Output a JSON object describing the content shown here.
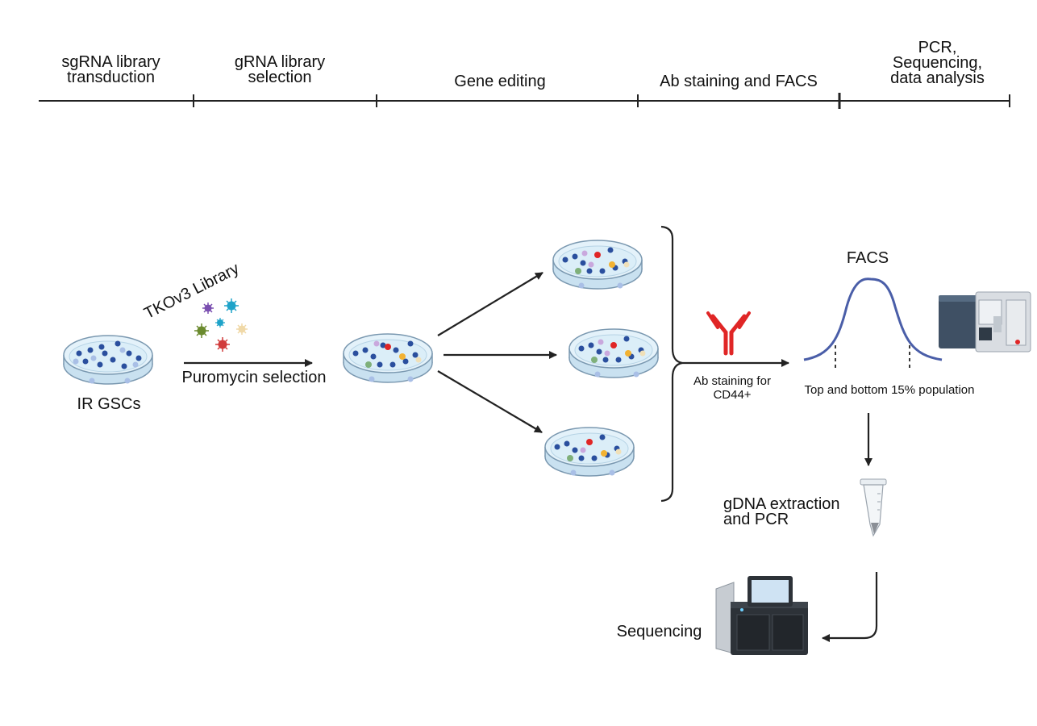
{
  "timeline": {
    "phases": [
      {
        "lines": [
          "sgRNA library",
          "transduction"
        ]
      },
      {
        "lines": [
          "gRNA library",
          "selection"
        ]
      },
      {
        "lines": [
          "Gene editing"
        ]
      },
      {
        "lines": [
          "Ab staining and FACS"
        ]
      },
      {
        "lines": [
          "PCR,",
          "Sequencing,",
          "data analysis"
        ]
      }
    ]
  },
  "steps": {
    "cells_label": "IR GSCs",
    "library_label": "TKOv3 Library",
    "selection_label": "Puromycin selection",
    "staining_lines": [
      "Ab staining for",
      "CD44+"
    ],
    "facs_label": "FACS",
    "population_label": "Top and bottom 15% population",
    "extraction_lines": [
      "gDNA extraction",
      "and PCR"
    ],
    "sequencing_label": "Sequencing"
  },
  "colors": {
    "dish_fill": "#dbeef8",
    "cell_dark": "#2a4f9e",
    "cell_light": "#a9bfe6",
    "cell_red": "#e02626",
    "cell_orange": "#f2b233",
    "cell_green": "#7fb07a",
    "cell_lilac": "#c9a8dd",
    "antibody": "#e02626",
    "curve": "#4a5ea8",
    "line": "#222222"
  }
}
